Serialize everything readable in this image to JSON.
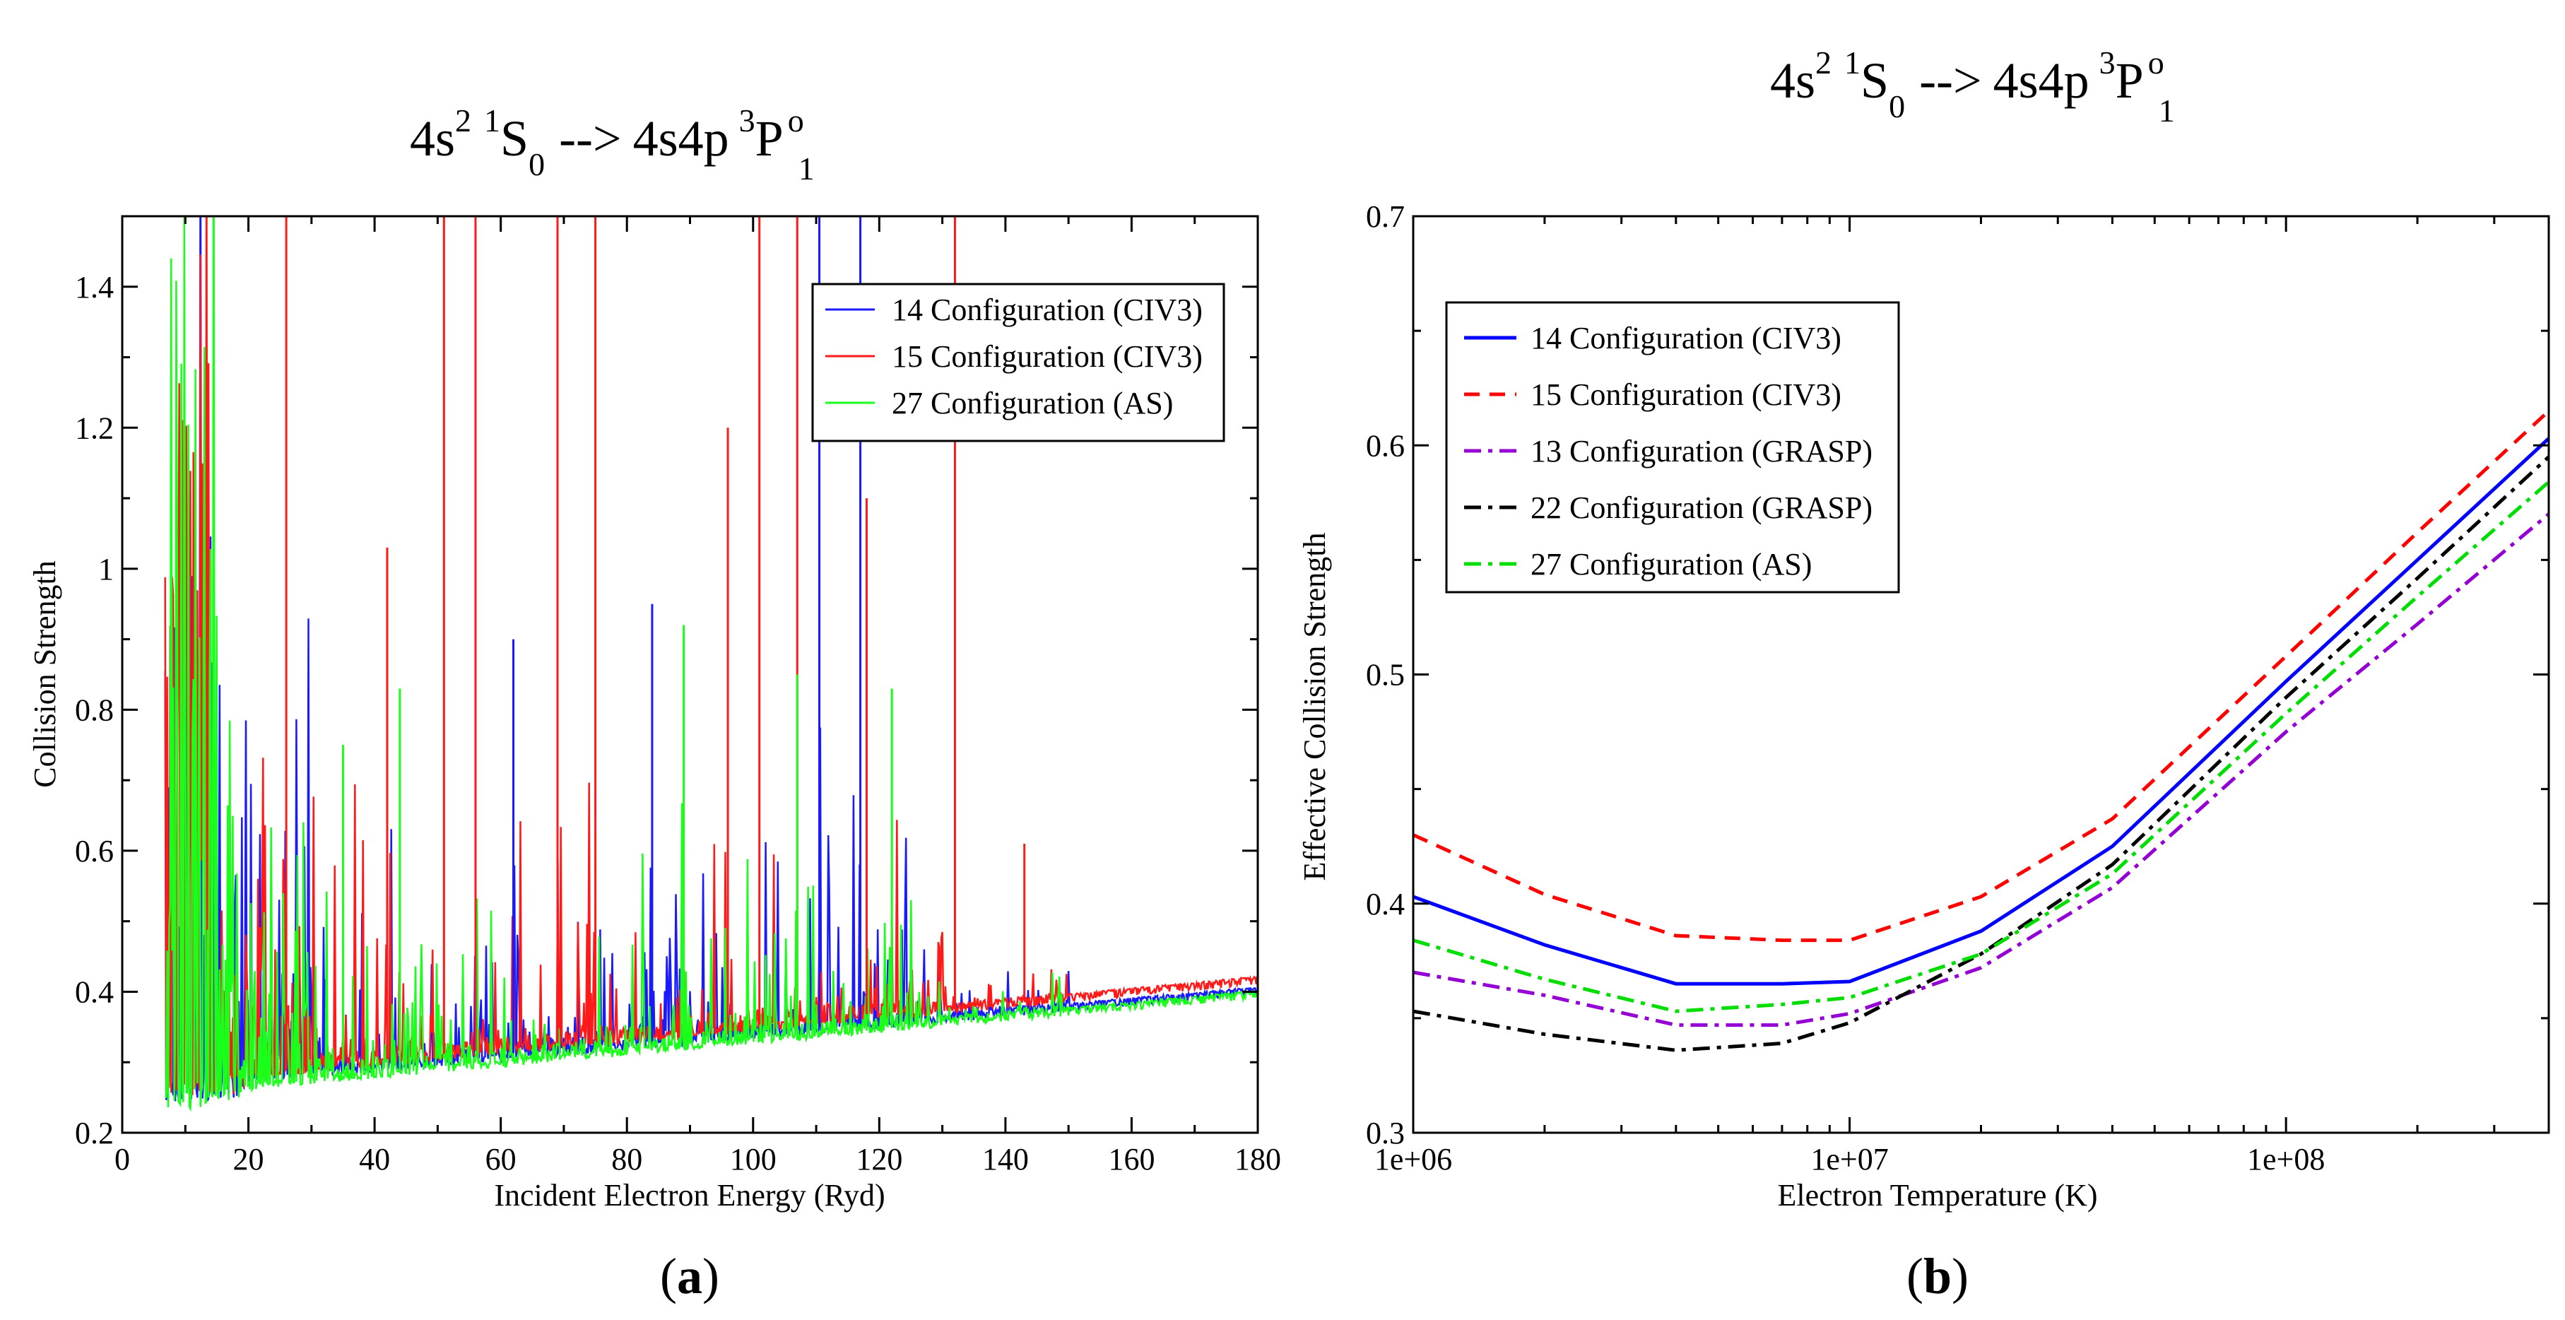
{
  "chart_data": [
    {
      "panel": "(a)",
      "type": "line",
      "title": {
        "base": "4s",
        "sup1": "2",
        "sup2": "1",
        "s": "S",
        "sub1": "0",
        "arrow": "-->",
        "mid": "4s4p",
        "sup3": "3",
        "p": "P",
        "sup4": "o",
        "sub2": "1"
      },
      "xlabel": "Incident Electron Energy (Ryd)",
      "ylabel": "Collision Strength",
      "xlim": [
        0,
        180
      ],
      "ylim": [
        0.2,
        1.5
      ],
      "xticks": [
        0,
        20,
        40,
        60,
        80,
        100,
        120,
        140,
        160,
        180
      ],
      "xtick_labels": [
        "0",
        "20",
        "40",
        "60",
        "80",
        "100",
        "120",
        "140",
        "160",
        "180"
      ],
      "yticks": [
        0.2,
        0.4,
        0.6,
        0.8,
        1.0,
        1.2,
        1.4
      ],
      "ytick_labels": [
        "0.2",
        "0.4",
        "0.6",
        "0.8",
        "1",
        "1.2",
        "1.4"
      ],
      "legend_position": "top-right",
      "series": [
        {
          "name": "14 Configuration (CIV3)",
          "color": "#1a1aff",
          "style": "solid",
          "background_start": 0.27,
          "background_end": 0.405
        },
        {
          "name": "15 Configuration (CIV3)",
          "color": "#ff1a1a",
          "style": "solid",
          "background_start": 0.275,
          "background_end": 0.42
        },
        {
          "name": "27 Configuration (AS)",
          "color": "#1aff1a",
          "style": "solid",
          "background_start": 0.26,
          "background_end": 0.4
        }
      ],
      "resonance_peaks": [
        {
          "series": 0,
          "x": 110.5,
          "y": 1.5
        },
        {
          "series": 0,
          "x": 117,
          "y": 1.5
        },
        {
          "series": 0,
          "x": 84,
          "y": 0.95
        },
        {
          "series": 0,
          "x": 62,
          "y": 0.9
        },
        {
          "series": 1,
          "x": 26,
          "y": 1.5
        },
        {
          "series": 1,
          "x": 51,
          "y": 1.5
        },
        {
          "series": 1,
          "x": 56,
          "y": 1.5
        },
        {
          "series": 1,
          "x": 69,
          "y": 1.5
        },
        {
          "series": 1,
          "x": 75,
          "y": 1.5
        },
        {
          "series": 1,
          "x": 101,
          "y": 1.5
        },
        {
          "series": 1,
          "x": 107,
          "y": 1.5
        },
        {
          "series": 1,
          "x": 132,
          "y": 1.5
        },
        {
          "series": 1,
          "x": 42,
          "y": 1.03
        },
        {
          "series": 1,
          "x": 96,
          "y": 1.2
        },
        {
          "series": 1,
          "x": 118,
          "y": 1.1
        },
        {
          "series": 1,
          "x": 143,
          "y": 0.61
        },
        {
          "series": 2,
          "x": 35,
          "y": 0.75
        },
        {
          "series": 2,
          "x": 44,
          "y": 0.83
        },
        {
          "series": 2,
          "x": 89,
          "y": 0.92
        },
        {
          "series": 2,
          "x": 107,
          "y": 0.85
        },
        {
          "series": 2,
          "x": 122,
          "y": 0.83
        }
      ]
    },
    {
      "panel": "(b)",
      "type": "line",
      "title": {
        "base": "4s",
        "sup1": "2",
        "sup2": "1",
        "s": "S",
        "sub1": "0",
        "arrow": "-->",
        "mid": "4s4p",
        "sup3": "3",
        "p": "P",
        "sup4": "o",
        "sub2": "1"
      },
      "xlabel": "Electron Temperature (K)",
      "ylabel": "Effective Collision Strength",
      "xscale": "log",
      "xlim": [
        1000000,
        400000000
      ],
      "ylim": [
        0.3,
        0.7
      ],
      "xticks": [
        1000000,
        10000000,
        100000000
      ],
      "xtick_labels": [
        "1e+06",
        "1e+07",
        "1e+08"
      ],
      "yticks": [
        0.3,
        0.4,
        0.5,
        0.6,
        0.7
      ],
      "ytick_labels": [
        "0.3",
        "0.4",
        "0.5",
        "0.6",
        "0.7"
      ],
      "legend_position": "top-left",
      "x": [
        1000000,
        2000000,
        4000000,
        7000000,
        10000000,
        20000000,
        40000000,
        100000000,
        200000000,
        400000000
      ],
      "series": [
        {
          "name": "14 Configuration (CIV3)",
          "color": "#0000ff",
          "style": "solid",
          "values": [
            0.403,
            0.382,
            0.365,
            0.365,
            0.366,
            0.388,
            0.425,
            0.497,
            0.55,
            0.603
          ]
        },
        {
          "name": "15 Configuration (CIV3)",
          "color": "#ff0000",
          "style": "dash",
          "values": [
            0.43,
            0.404,
            0.386,
            0.384,
            0.384,
            0.403,
            0.437,
            0.508,
            0.562,
            0.615
          ]
        },
        {
          "name": "13 Configuration (GRASP)",
          "color": "#9400d3",
          "style": "dashdot",
          "values": [
            0.37,
            0.36,
            0.347,
            0.347,
            0.352,
            0.372,
            0.407,
            0.475,
            0.522,
            0.57
          ]
        },
        {
          "name": "22 Configuration (GRASP)",
          "color": "#000000",
          "style": "dashdot",
          "values": [
            0.353,
            0.343,
            0.336,
            0.339,
            0.348,
            0.378,
            0.417,
            0.49,
            0.542,
            0.595
          ]
        },
        {
          "name": "27 Configuration (AS)",
          "color": "#00dd00",
          "style": "dashdot",
          "values": [
            0.384,
            0.367,
            0.353,
            0.356,
            0.359,
            0.378,
            0.413,
            0.483,
            0.534,
            0.584
          ]
        }
      ]
    }
  ]
}
